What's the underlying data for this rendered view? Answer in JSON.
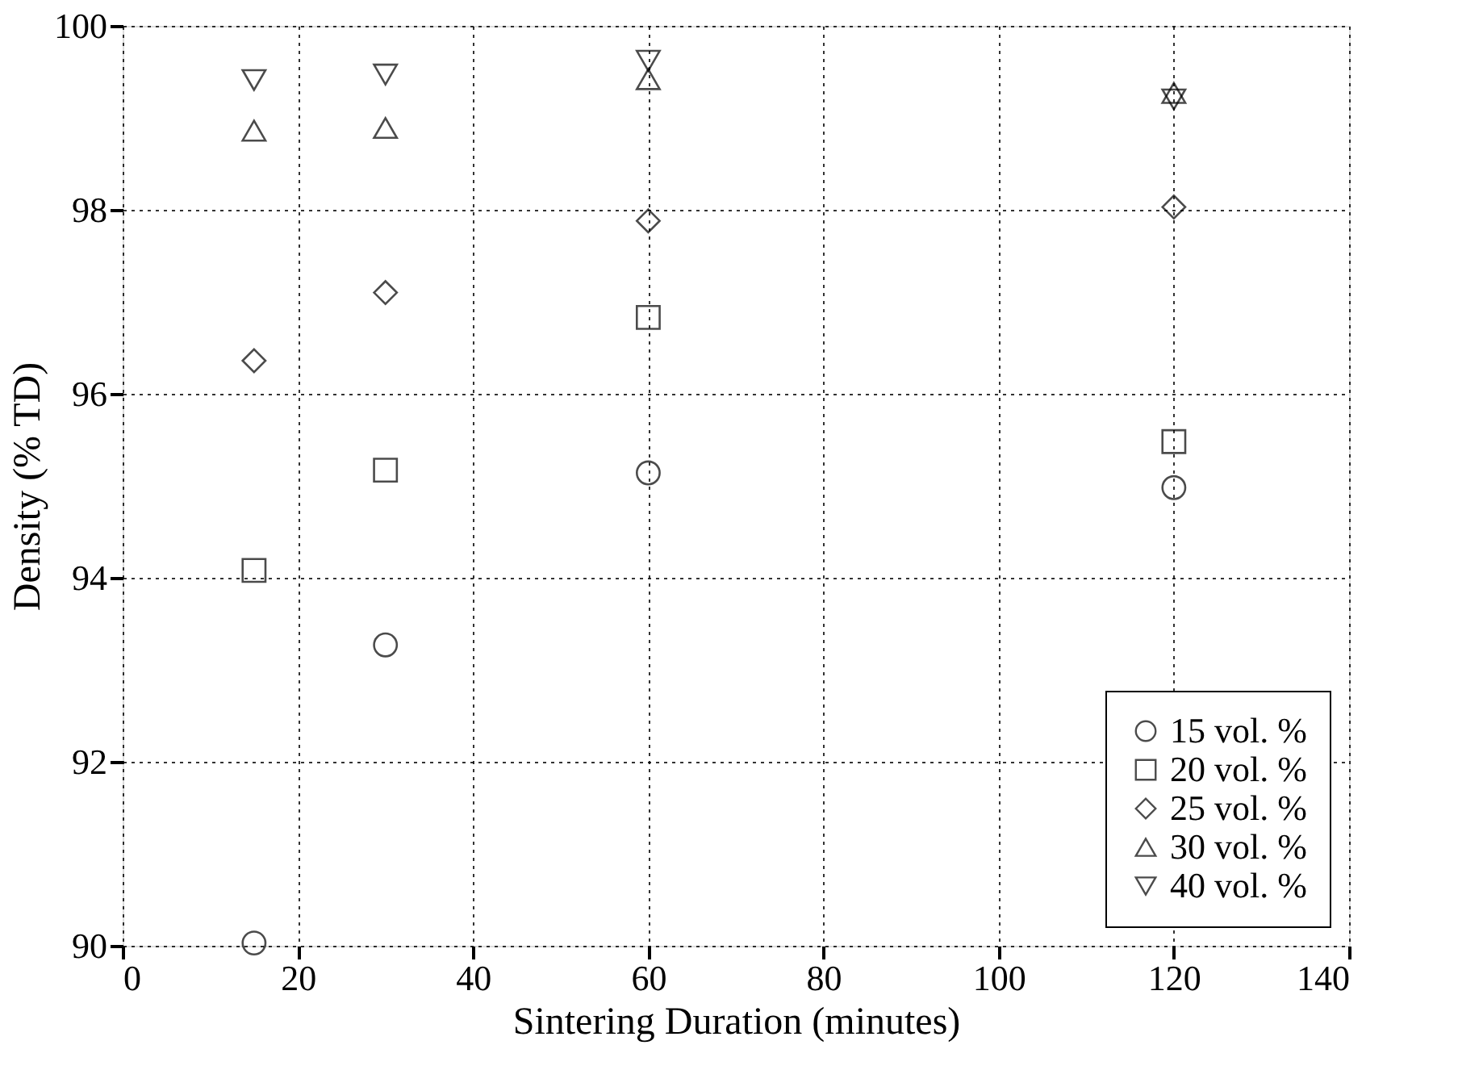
{
  "chart_data": {
    "type": "scatter",
    "xlabel": "Sintering Duration (minutes)",
    "ylabel": "Density (% TD)",
    "xlim": [
      0,
      140
    ],
    "xticks": [
      0,
      20,
      40,
      60,
      80,
      100,
      120,
      140
    ],
    "ylim": [
      90,
      100
    ],
    "yticks": [
      90,
      92,
      94,
      96,
      98,
      100
    ],
    "grid": true,
    "legend": "bottom right",
    "series": [
      {
        "name": "15 vol. %",
        "color": "#000000",
        "marker": "circle",
        "x": [
          15,
          30,
          60,
          120
        ],
        "values": [
          90.03,
          93.27,
          95.14,
          94.98
        ]
      },
      {
        "name": "20 vol. %",
        "color": "#000000",
        "marker": "square",
        "x": [
          15,
          30,
          60,
          120
        ],
        "values": [
          94.08,
          95.17,
          96.83,
          95.48
        ]
      },
      {
        "name": "25 vol. %",
        "color": "#000000",
        "marker": "diamond",
        "x": [
          15,
          30,
          60,
          120
        ],
        "values": [
          96.36,
          97.1,
          97.88,
          98.03
        ]
      },
      {
        "name": "30 vol. %",
        "color": "#000000",
        "marker": "triangle",
        "x": [
          15,
          30,
          60,
          120
        ],
        "values": [
          98.86,
          98.89,
          99.42,
          99.27
        ]
      },
      {
        "name": "40 vol. %",
        "color": "#000000",
        "marker": "triangle-down",
        "x": [
          15,
          30,
          60,
          120
        ],
        "values": [
          99.41,
          99.47,
          99.62,
          99.2
        ]
      }
    ]
  }
}
